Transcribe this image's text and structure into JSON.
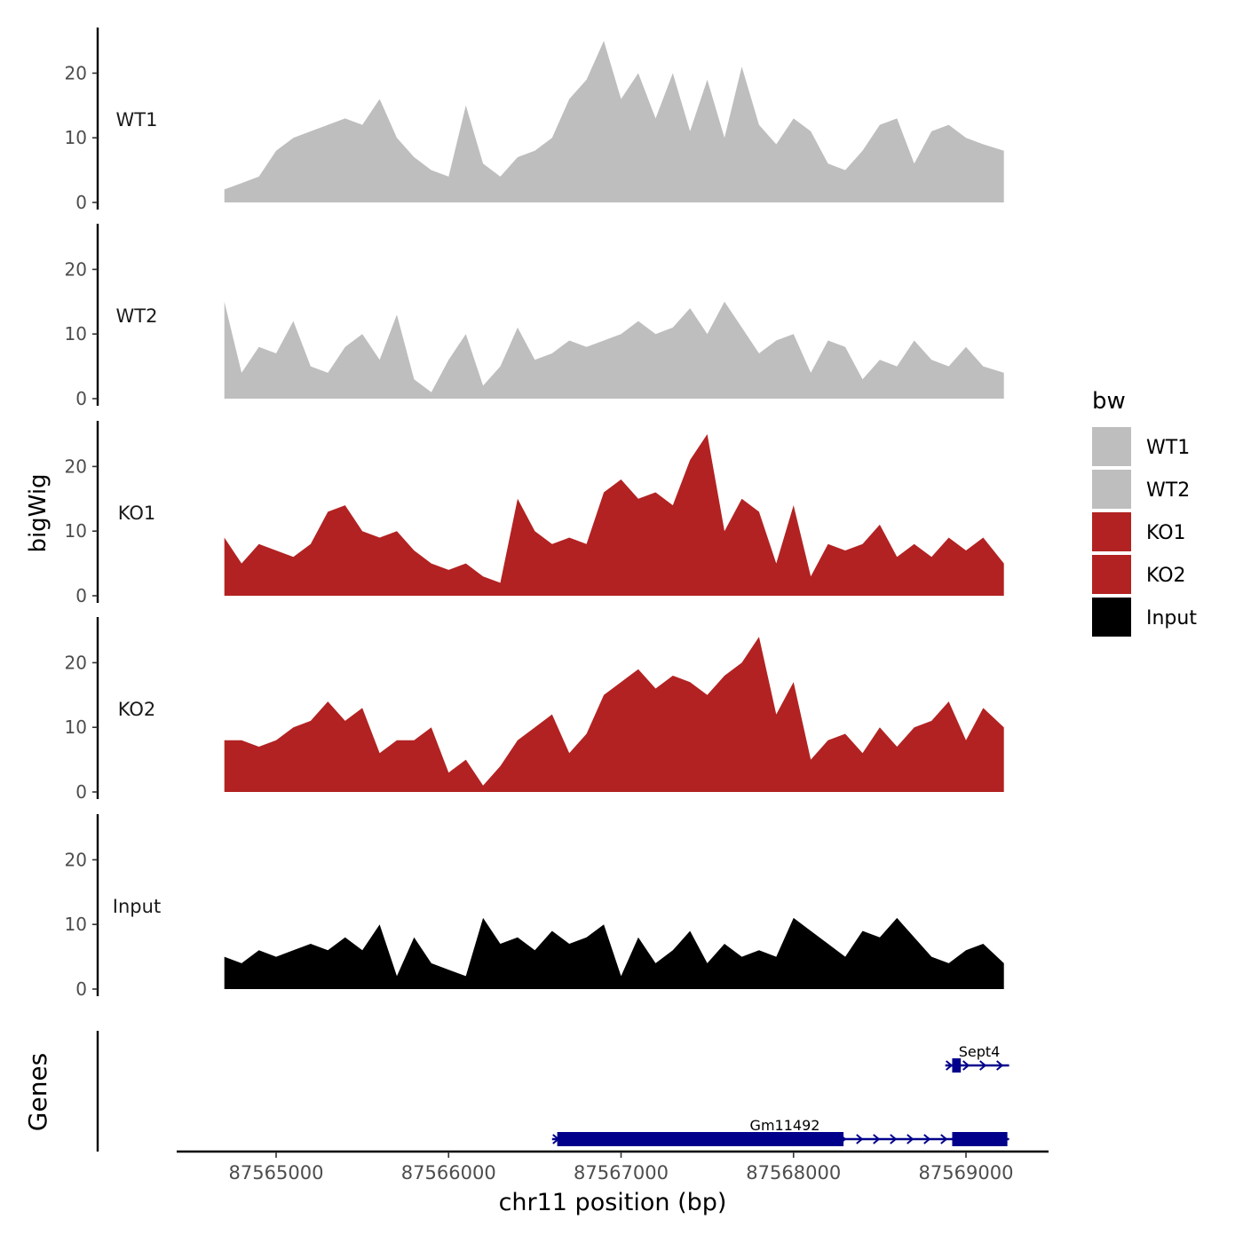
{
  "chart_data": {
    "type": "area",
    "ylabel": "bigWig",
    "xlabel": "chr11 position (bp)",
    "genes_label": "Genes",
    "x_ticks": [
      87565000,
      87566000,
      87567000,
      87568000,
      87569000
    ],
    "x_tick_labels": [
      "87565000",
      "87566000",
      "87567000",
      "87568000",
      "87569000"
    ],
    "xlim": [
      87564400,
      87569500
    ],
    "y_ticks": [
      0,
      10,
      20
    ],
    "y_tick_labels": [
      "0",
      "10",
      "20"
    ],
    "ylim": [
      0,
      27
    ],
    "legend": {
      "title": "bw",
      "position": "right",
      "entries": [
        {
          "name": "WT1",
          "color": "#BEBEBE"
        },
        {
          "name": "WT2",
          "color": "#BEBEBE"
        },
        {
          "name": "KO1",
          "color": "#B22222"
        },
        {
          "name": "KO2",
          "color": "#B22222"
        },
        {
          "name": "Input",
          "color": "#000000"
        }
      ]
    },
    "tracks": [
      {
        "name": "WT1",
        "color": "#BEBEBE",
        "x": [
          87564700,
          87564800,
          87564900,
          87565000,
          87565100,
          87565200,
          87565300,
          87565400,
          87565500,
          87565600,
          87565700,
          87565800,
          87565900,
          87566000,
          87566100,
          87566200,
          87566300,
          87566400,
          87566500,
          87566600,
          87566700,
          87566800,
          87566900,
          87567000,
          87567100,
          87567200,
          87567300,
          87567400,
          87567500,
          87567600,
          87567700,
          87567800,
          87567900,
          87568000,
          87568100,
          87568200,
          87568300,
          87568400,
          87568500,
          87568600,
          87568700,
          87568800,
          87568900,
          87569000,
          87569100,
          87569220
        ],
        "y": [
          2,
          3,
          4,
          8,
          10,
          11,
          12,
          13,
          12,
          16,
          10,
          7,
          5,
          4,
          15,
          6,
          4,
          7,
          8,
          10,
          16,
          19,
          25,
          16,
          20,
          13,
          20,
          11,
          19,
          10,
          21,
          12,
          9,
          13,
          11,
          6,
          5,
          8,
          12,
          13,
          6,
          11,
          12,
          10,
          9,
          8
        ]
      },
      {
        "name": "WT2",
        "color": "#BEBEBE",
        "x": [
          87564700,
          87564800,
          87564900,
          87565000,
          87565100,
          87565200,
          87565300,
          87565400,
          87565500,
          87565600,
          87565700,
          87565800,
          87565900,
          87566000,
          87566100,
          87566200,
          87566300,
          87566400,
          87566500,
          87566600,
          87566700,
          87566800,
          87566900,
          87567000,
          87567100,
          87567200,
          87567300,
          87567400,
          87567500,
          87567600,
          87567700,
          87567800,
          87567900,
          87568000,
          87568100,
          87568200,
          87568300,
          87568400,
          87568500,
          87568600,
          87568700,
          87568800,
          87568900,
          87569000,
          87569100,
          87569220
        ],
        "y": [
          15,
          4,
          8,
          7,
          12,
          5,
          4,
          8,
          10,
          6,
          13,
          3,
          1,
          6,
          10,
          2,
          5,
          11,
          6,
          7,
          9,
          8,
          9,
          10,
          12,
          10,
          11,
          14,
          10,
          15,
          11,
          7,
          9,
          10,
          4,
          9,
          8,
          3,
          6,
          5,
          9,
          6,
          5,
          8,
          5,
          4
        ]
      },
      {
        "name": "KO1",
        "color": "#B22222",
        "x": [
          87564700,
          87564800,
          87564900,
          87565000,
          87565100,
          87565200,
          87565300,
          87565400,
          87565500,
          87565600,
          87565700,
          87565800,
          87565900,
          87566000,
          87566100,
          87566200,
          87566300,
          87566400,
          87566500,
          87566600,
          87566700,
          87566800,
          87566900,
          87567000,
          87567100,
          87567200,
          87567300,
          87567400,
          87567500,
          87567600,
          87567700,
          87567800,
          87567900,
          87568000,
          87568100,
          87568200,
          87568300,
          87568400,
          87568500,
          87568600,
          87568700,
          87568800,
          87568900,
          87569000,
          87569100,
          87569220
        ],
        "y": [
          9,
          5,
          8,
          7,
          6,
          8,
          13,
          14,
          10,
          9,
          10,
          7,
          5,
          4,
          5,
          3,
          2,
          15,
          10,
          8,
          9,
          8,
          16,
          18,
          15,
          16,
          14,
          21,
          25,
          10,
          15,
          13,
          5,
          14,
          3,
          8,
          7,
          8,
          11,
          6,
          8,
          6,
          9,
          7,
          9,
          5
        ]
      },
      {
        "name": "KO2",
        "color": "#B22222",
        "x": [
          87564700,
          87564800,
          87564900,
          87565000,
          87565100,
          87565200,
          87565300,
          87565400,
          87565500,
          87565600,
          87565700,
          87565800,
          87565900,
          87566000,
          87566100,
          87566200,
          87566300,
          87566400,
          87566500,
          87566600,
          87566700,
          87566800,
          87566900,
          87567000,
          87567100,
          87567200,
          87567300,
          87567400,
          87567500,
          87567600,
          87567700,
          87567800,
          87567900,
          87568000,
          87568100,
          87568200,
          87568300,
          87568400,
          87568500,
          87568600,
          87568700,
          87568800,
          87568900,
          87569000,
          87569100,
          87569220
        ],
        "y": [
          8,
          8,
          7,
          8,
          10,
          11,
          14,
          11,
          13,
          6,
          8,
          8,
          10,
          3,
          5,
          1,
          4,
          8,
          10,
          12,
          6,
          9,
          15,
          17,
          19,
          16,
          18,
          17,
          15,
          18,
          20,
          24,
          12,
          17,
          5,
          8,
          9,
          6,
          10,
          7,
          10,
          11,
          14,
          8,
          13,
          10
        ]
      },
      {
        "name": "Input",
        "color": "#000000",
        "x": [
          87564700,
          87564800,
          87564900,
          87565000,
          87565100,
          87565200,
          87565300,
          87565400,
          87565500,
          87565600,
          87565700,
          87565800,
          87565900,
          87566000,
          87566100,
          87566200,
          87566300,
          87566400,
          87566500,
          87566600,
          87566700,
          87566800,
          87566900,
          87567000,
          87567100,
          87567200,
          87567300,
          87567400,
          87567500,
          87567600,
          87567700,
          87567800,
          87567900,
          87568000,
          87568100,
          87568200,
          87568300,
          87568400,
          87568500,
          87568600,
          87568700,
          87568800,
          87568900,
          87569000,
          87569100,
          87569220
        ],
        "y": [
          5,
          4,
          6,
          5,
          6,
          7,
          6,
          8,
          6,
          10,
          2,
          8,
          4,
          3,
          2,
          11,
          7,
          8,
          6,
          9,
          7,
          8,
          10,
          2,
          8,
          4,
          6,
          9,
          4,
          7,
          5,
          6,
          5,
          11,
          9,
          7,
          5,
          9,
          8,
          11,
          8,
          5,
          4,
          6,
          7,
          4
        ]
      }
    ],
    "genes": [
      {
        "name": "Sept4",
        "start": 87568880,
        "end": 87569250,
        "exons": [
          [
            87568920,
            87568970
          ]
        ],
        "strand": "+",
        "row": 1
      },
      {
        "name": "Gm11492",
        "start": 87566600,
        "end": 87569250,
        "exons": [
          [
            87566630,
            87568290
          ],
          [
            87568920,
            87569240
          ]
        ],
        "strand": "+",
        "row": 2
      }
    ]
  }
}
